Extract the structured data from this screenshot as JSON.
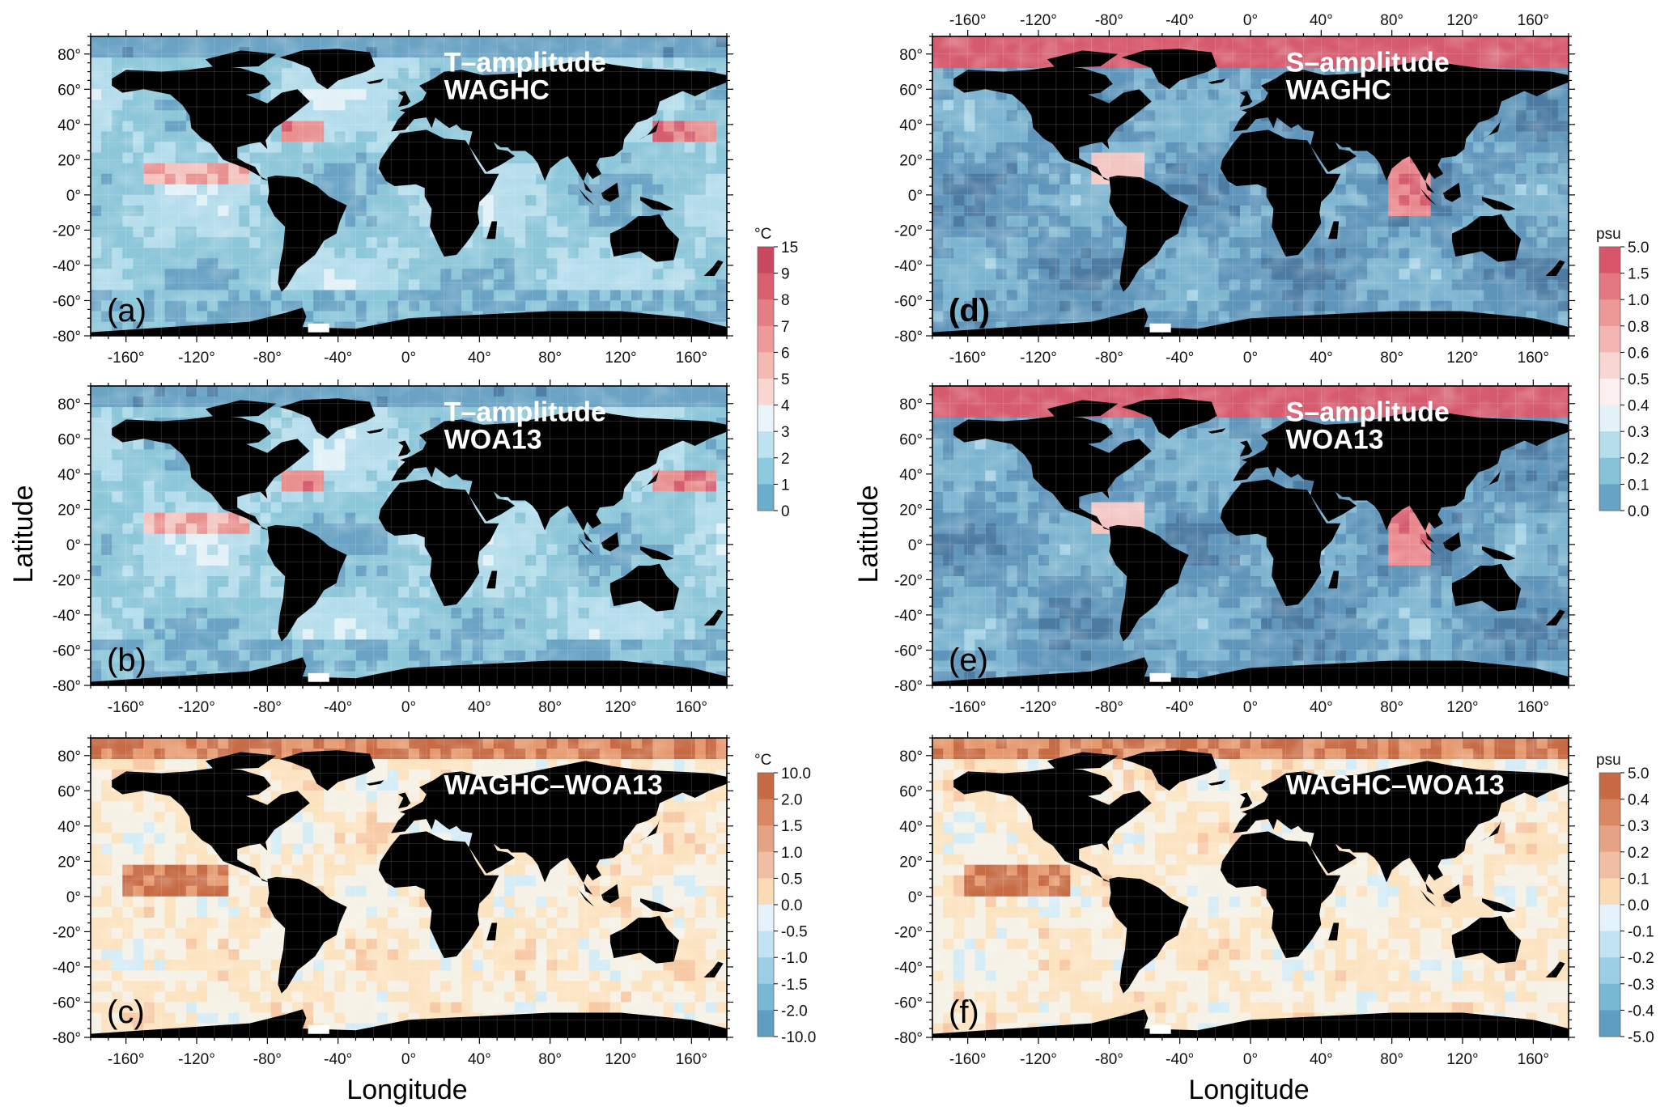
{
  "figure": {
    "xlabel": "Longitude",
    "ylabel": "Latitude",
    "lon_ticks": [
      "-160°",
      "-120°",
      "-80°",
      "-40°",
      "0°",
      "40°",
      "80°",
      "120°",
      "160°"
    ],
    "lat_ticks": [
      "80°",
      "60°",
      "40°",
      "20°",
      "0°",
      "-20°",
      "-40°",
      "-60°",
      "-80°"
    ],
    "colors": {
      "land": "#000000",
      "missing": "#ffffff"
    }
  },
  "panels": [
    {
      "id": "a",
      "letter": "(a)",
      "title_lines": [
        "T–amplitude",
        "WAGHC"
      ],
      "colorbar": "t_amp",
      "pattern": "amp",
      "top_axis": false
    },
    {
      "id": "b",
      "letter": "(b)",
      "title_lines": [
        "T–amplitude",
        "WOA13"
      ],
      "colorbar": null,
      "pattern": "amp",
      "top_axis": true
    },
    {
      "id": "c",
      "letter": "(c)",
      "title_lines": [
        "WAGHC–WOA13"
      ],
      "colorbar": "t_diff",
      "pattern": "diff",
      "top_axis": true
    },
    {
      "id": "d",
      "letter": "(d)",
      "title_lines": [
        "S–amplitude",
        "WAGHC"
      ],
      "colorbar": "s_amp",
      "pattern": "samp",
      "top_axis": true
    },
    {
      "id": "e",
      "letter": "(e)",
      "title_lines": [
        "S–amplitude",
        "WOA13"
      ],
      "colorbar": null,
      "pattern": "samp",
      "top_axis": true
    },
    {
      "id": "f",
      "letter": "(f)",
      "title_lines": [
        "WAGHC–WOA13"
      ],
      "colorbar": "s_diff",
      "pattern": "diff",
      "top_axis": true
    }
  ],
  "colorbars": {
    "t_amp": {
      "unit": "°C",
      "labels": [
        "15",
        "9",
        "8",
        "7",
        "6",
        "5",
        "4",
        "3",
        "2",
        "1",
        "0"
      ],
      "colors": [
        "#c9475f",
        "#d8606f",
        "#e47e84",
        "#ee9a9a",
        "#f5b9b4",
        "#f8d7d3",
        "#eaf5fb",
        "#bfe3ee",
        "#8ccadd",
        "#6aaecb",
        "#5186ad"
      ]
    },
    "s_amp": {
      "unit": "psu",
      "labels": [
        "5.0",
        "1.5",
        "1.0",
        "0.8",
        "0.6",
        "0.5",
        "0.4",
        "0.3",
        "0.2",
        "0.1",
        "0.0"
      ],
      "colors": [
        "#d9566a",
        "#e37880",
        "#ec9897",
        "#f3b6b2",
        "#f8d6d3",
        "#fbeff0",
        "#e3f2f9",
        "#b6ddeb",
        "#86c2d8",
        "#66a3c5",
        "#5081a8"
      ]
    },
    "t_diff": {
      "unit": "°C",
      "labels": [
        "10.0",
        "2.0",
        "1.5",
        "1.0",
        "0.5",
        "0.0",
        "-0.5",
        "-1.0",
        "-1.5",
        "-2.0",
        "-10.0"
      ],
      "colors": [
        "#c76b45",
        "#d98763",
        "#e6a284",
        "#f0bea4",
        "#fbdcb4",
        "#e4f3fb",
        "#c2e3f1",
        "#9ccfe4",
        "#79b8d2",
        "#5e9ec0"
      ]
    },
    "s_diff": {
      "unit": "psu",
      "labels": [
        "5.0",
        "0.4",
        "0.3",
        "0.2",
        "0.1",
        "0.0",
        "-0.1",
        "-0.2",
        "-0.3",
        "-0.4",
        "-5.0"
      ],
      "colors": [
        "#c76b45",
        "#d98763",
        "#e6a284",
        "#f0bea4",
        "#fbdcb4",
        "#e4f3fb",
        "#c2e3f1",
        "#9ccfe4",
        "#79b8d2",
        "#5e9ec0"
      ]
    }
  }
}
